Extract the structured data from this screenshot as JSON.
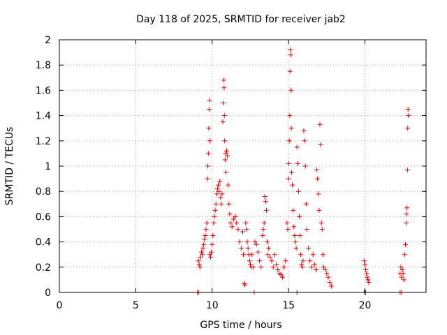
{
  "chart_data": {
    "type": "scatter",
    "title": "Day 118 of 2025, SRMTID for receiver jab2",
    "xlabel": "GPS time / hours",
    "ylabel": "SRMTID / TECUs",
    "xlim": [
      0,
      24
    ],
    "ylim": [
      0,
      2
    ],
    "xticks": [
      0,
      5,
      10,
      15,
      20
    ],
    "xtick_labels": [
      "0",
      "5",
      "10",
      "15",
      "20"
    ],
    "yticks": [
      0,
      0.2,
      0.4,
      0.6,
      0.8,
      1,
      1.2,
      1.4,
      1.6,
      1.8,
      2
    ],
    "ytick_labels": [
      "0",
      "0.2",
      "0.4",
      "0.6",
      "0.8",
      "1",
      "1.2",
      "1.4",
      "1.6",
      "1.8",
      "2"
    ],
    "grid": true,
    "marker": "+",
    "color": "#e00000",
    "series": [
      {
        "name": "jab2",
        "points": [
          [
            9.05,
            0.0
          ],
          [
            9.1,
            0.0
          ],
          [
            12.75,
            0.0
          ],
          [
            15.55,
            0.0
          ],
          [
            19.95,
            0.0
          ],
          [
            20.05,
            0.0
          ],
          [
            22.3,
            0.0
          ],
          [
            22.4,
            0.0
          ],
          [
            9.1,
            0.25
          ],
          [
            9.15,
            0.22
          ],
          [
            9.2,
            0.2
          ],
          [
            9.25,
            0.28
          ],
          [
            9.3,
            0.32
          ],
          [
            9.35,
            0.3
          ],
          [
            9.4,
            0.35
          ],
          [
            9.45,
            0.38
          ],
          [
            9.5,
            0.42
          ],
          [
            9.55,
            0.45
          ],
          [
            9.6,
            0.5
          ],
          [
            9.65,
            0.55
          ],
          [
            9.7,
            0.9
          ],
          [
            9.72,
            1.0
          ],
          [
            9.75,
            1.1
          ],
          [
            9.78,
            1.3
          ],
          [
            9.8,
            1.45
          ],
          [
            9.82,
            1.52
          ],
          [
            9.85,
            1.2
          ],
          [
            9.85,
            0.3
          ],
          [
            9.9,
            0.28
          ],
          [
            9.95,
            0.32
          ],
          [
            10.0,
            0.38
          ],
          [
            10.05,
            0.45
          ],
          [
            10.1,
            0.55
          ],
          [
            10.15,
            0.6
          ],
          [
            10.2,
            0.65
          ],
          [
            10.25,
            0.7
          ],
          [
            10.3,
            0.78
          ],
          [
            10.35,
            0.82
          ],
          [
            10.4,
            0.85
          ],
          [
            10.45,
            0.8
          ],
          [
            10.5,
            0.88
          ],
          [
            10.55,
            0.75
          ],
          [
            10.6,
            0.7
          ],
          [
            10.65,
            0.78
          ],
          [
            10.7,
            1.35
          ],
          [
            10.72,
            1.5
          ],
          [
            10.75,
            1.68
          ],
          [
            10.78,
            1.62
          ],
          [
            10.8,
            1.4
          ],
          [
            10.82,
            1.2
          ],
          [
            10.85,
            1.05
          ],
          [
            10.88,
            1.1
          ],
          [
            10.9,
            0.95
          ],
          [
            10.95,
            1.12
          ],
          [
            11.0,
            1.08
          ],
          [
            11.05,
            0.85
          ],
          [
            11.1,
            0.7
          ],
          [
            11.15,
            0.62
          ],
          [
            11.2,
            0.55
          ],
          [
            11.3,
            0.52
          ],
          [
            11.4,
            0.58
          ],
          [
            11.5,
            0.6
          ],
          [
            11.6,
            0.55
          ],
          [
            11.7,
            0.5
          ],
          [
            11.8,
            0.4
          ],
          [
            11.9,
            0.35
          ],
          [
            12.0,
            0.48
          ],
          [
            12.05,
            0.3
          ],
          [
            12.1,
            0.07
          ],
          [
            12.15,
            0.06
          ],
          [
            12.2,
            0.55
          ],
          [
            12.25,
            0.5
          ],
          [
            12.3,
            0.4
          ],
          [
            12.35,
            0.35
          ],
          [
            12.4,
            0.3
          ],
          [
            12.45,
            0.25
          ],
          [
            12.5,
            0.22
          ],
          [
            12.55,
            0.2
          ],
          [
            12.6,
            0.3
          ],
          [
            12.7,
            0.2
          ],
          [
            12.8,
            0.4
          ],
          [
            12.9,
            0.38
          ],
          [
            13.0,
            0.32
          ],
          [
            13.1,
            0.25
          ],
          [
            13.2,
            0.2
          ],
          [
            13.3,
            0.45
          ],
          [
            13.35,
            0.5
          ],
          [
            13.4,
            0.55
          ],
          [
            13.45,
            0.76
          ],
          [
            13.5,
            0.72
          ],
          [
            13.55,
            0.65
          ],
          [
            13.6,
            0.4
          ],
          [
            13.65,
            0.3
          ],
          [
            13.7,
            0.35
          ],
          [
            13.8,
            0.28
          ],
          [
            13.9,
            0.25
          ],
          [
            14.0,
            0.2
          ],
          [
            14.1,
            0.3
          ],
          [
            14.2,
            0.22
          ],
          [
            14.3,
            0.18
          ],
          [
            14.4,
            0.15
          ],
          [
            14.5,
            0.14
          ],
          [
            14.6,
            0.12
          ],
          [
            14.7,
            0.2
          ],
          [
            14.8,
            0.25
          ],
          [
            14.9,
            0.55
          ],
          [
            14.95,
            0.5
          ],
          [
            15.0,
            0.9
          ],
          [
            15.02,
            1.02
          ],
          [
            15.05,
            1.2
          ],
          [
            15.08,
            1.4
          ],
          [
            15.1,
            1.75
          ],
          [
            15.12,
            1.92
          ],
          [
            15.14,
            1.88
          ],
          [
            15.16,
            1.6
          ],
          [
            15.18,
            1.3
          ],
          [
            15.2,
            0.95
          ],
          [
            15.25,
            0.85
          ],
          [
            15.3,
            0.65
          ],
          [
            15.35,
            0.52
          ],
          [
            15.4,
            0.45
          ],
          [
            15.45,
            0.4
          ],
          [
            15.5,
            0.35
          ],
          [
            15.55,
            1.15
          ],
          [
            15.6,
            1.02
          ],
          [
            15.65,
            0.8
          ],
          [
            15.7,
            0.6
          ],
          [
            15.75,
            0.45
          ],
          [
            15.8,
            0.3
          ],
          [
            15.85,
            0.22
          ],
          [
            15.9,
            0.2
          ],
          [
            15.95,
            0.25
          ],
          [
            16.0,
            1.28
          ],
          [
            16.05,
            1.2
          ],
          [
            16.1,
            1.0
          ],
          [
            16.15,
            0.7
          ],
          [
            16.2,
            0.5
          ],
          [
            16.3,
            0.35
          ],
          [
            16.4,
            0.25
          ],
          [
            16.5,
            0.2
          ],
          [
            16.6,
            0.3
          ],
          [
            16.7,
            0.22
          ],
          [
            16.8,
            0.18
          ],
          [
            16.85,
            0.97
          ],
          [
            16.9,
            0.9
          ],
          [
            16.95,
            0.78
          ],
          [
            17.0,
            0.65
          ],
          [
            17.05,
            1.33
          ],
          [
            17.1,
            1.17
          ],
          [
            17.15,
            0.55
          ],
          [
            17.2,
            0.5
          ],
          [
            17.25,
            0.3
          ],
          [
            17.3,
            0.2
          ],
          [
            17.4,
            0.18
          ],
          [
            17.5,
            0.15
          ],
          [
            17.6,
            0.12
          ],
          [
            17.7,
            0.08
          ],
          [
            17.8,
            0.05
          ],
          [
            19.95,
            0.25
          ],
          [
            20.0,
            0.22
          ],
          [
            20.05,
            0.18
          ],
          [
            20.1,
            0.15
          ],
          [
            20.15,
            0.12
          ],
          [
            20.2,
            0.1
          ],
          [
            20.25,
            0.08
          ],
          [
            22.3,
            0.15
          ],
          [
            22.35,
            0.2
          ],
          [
            22.4,
            0.12
          ],
          [
            22.45,
            0.18
          ],
          [
            22.5,
            0.15
          ],
          [
            22.55,
            0.1
          ],
          [
            22.6,
            0.3
          ],
          [
            22.65,
            0.38
          ],
          [
            22.7,
            0.55
          ],
          [
            22.72,
            0.62
          ],
          [
            22.75,
            0.67
          ],
          [
            22.78,
            0.97
          ],
          [
            22.8,
            1.3
          ],
          [
            22.82,
            1.45
          ],
          [
            22.85,
            1.4
          ]
        ]
      }
    ]
  }
}
